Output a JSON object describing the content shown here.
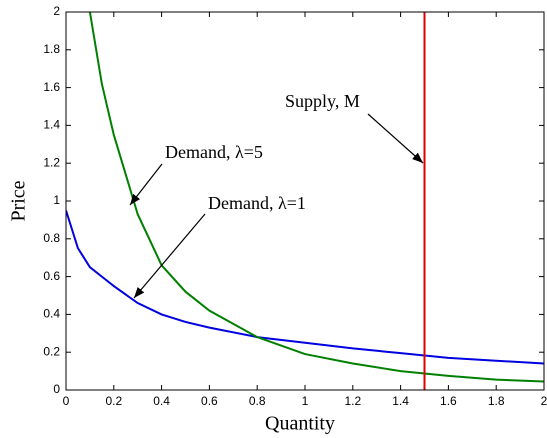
{
  "chart_data": {
    "type": "line",
    "x_label": "Quantity",
    "y_label": "Price",
    "x": [
      0,
      0.05,
      0.1,
      0.15,
      0.2,
      0.3,
      0.4,
      0.5,
      0.6,
      0.8,
      1.0,
      1.2,
      1.4,
      1.6,
      1.8,
      2.0
    ],
    "series": [
      {
        "color": "#0000e0",
        "values": [
          0.95,
          0.75,
          0.65,
          0.6,
          0.55,
          0.46,
          0.4,
          0.36,
          0.33,
          0.28,
          0.25,
          0.22,
          0.195,
          0.17,
          0.155,
          0.14
        ]
      },
      {
        "color": "#008000",
        "values": [
          null,
          null,
          2.0,
          1.62,
          1.35,
          0.93,
          0.66,
          0.52,
          0.42,
          0.28,
          0.19,
          0.14,
          0.1,
          0.075,
          0.055,
          0.045
        ]
      }
    ],
    "vlines": [
      {
        "x": 1.5,
        "color": "#e00000"
      }
    ],
    "annotations": [
      "Demand, λ=5",
      "Demand, λ=1",
      "Supply, M"
    ],
    "xlim": [
      0,
      2
    ],
    "ylim": [
      0,
      2
    ],
    "xticks": [
      0,
      0.2,
      0.4,
      0.6,
      0.8,
      1,
      1.2,
      1.4,
      1.6,
      1.8,
      2
    ],
    "yticks": [
      0,
      0.2,
      0.4,
      0.6,
      0.8,
      1,
      1.2,
      1.4,
      1.6,
      1.8,
      2
    ],
    "grid": false
  }
}
